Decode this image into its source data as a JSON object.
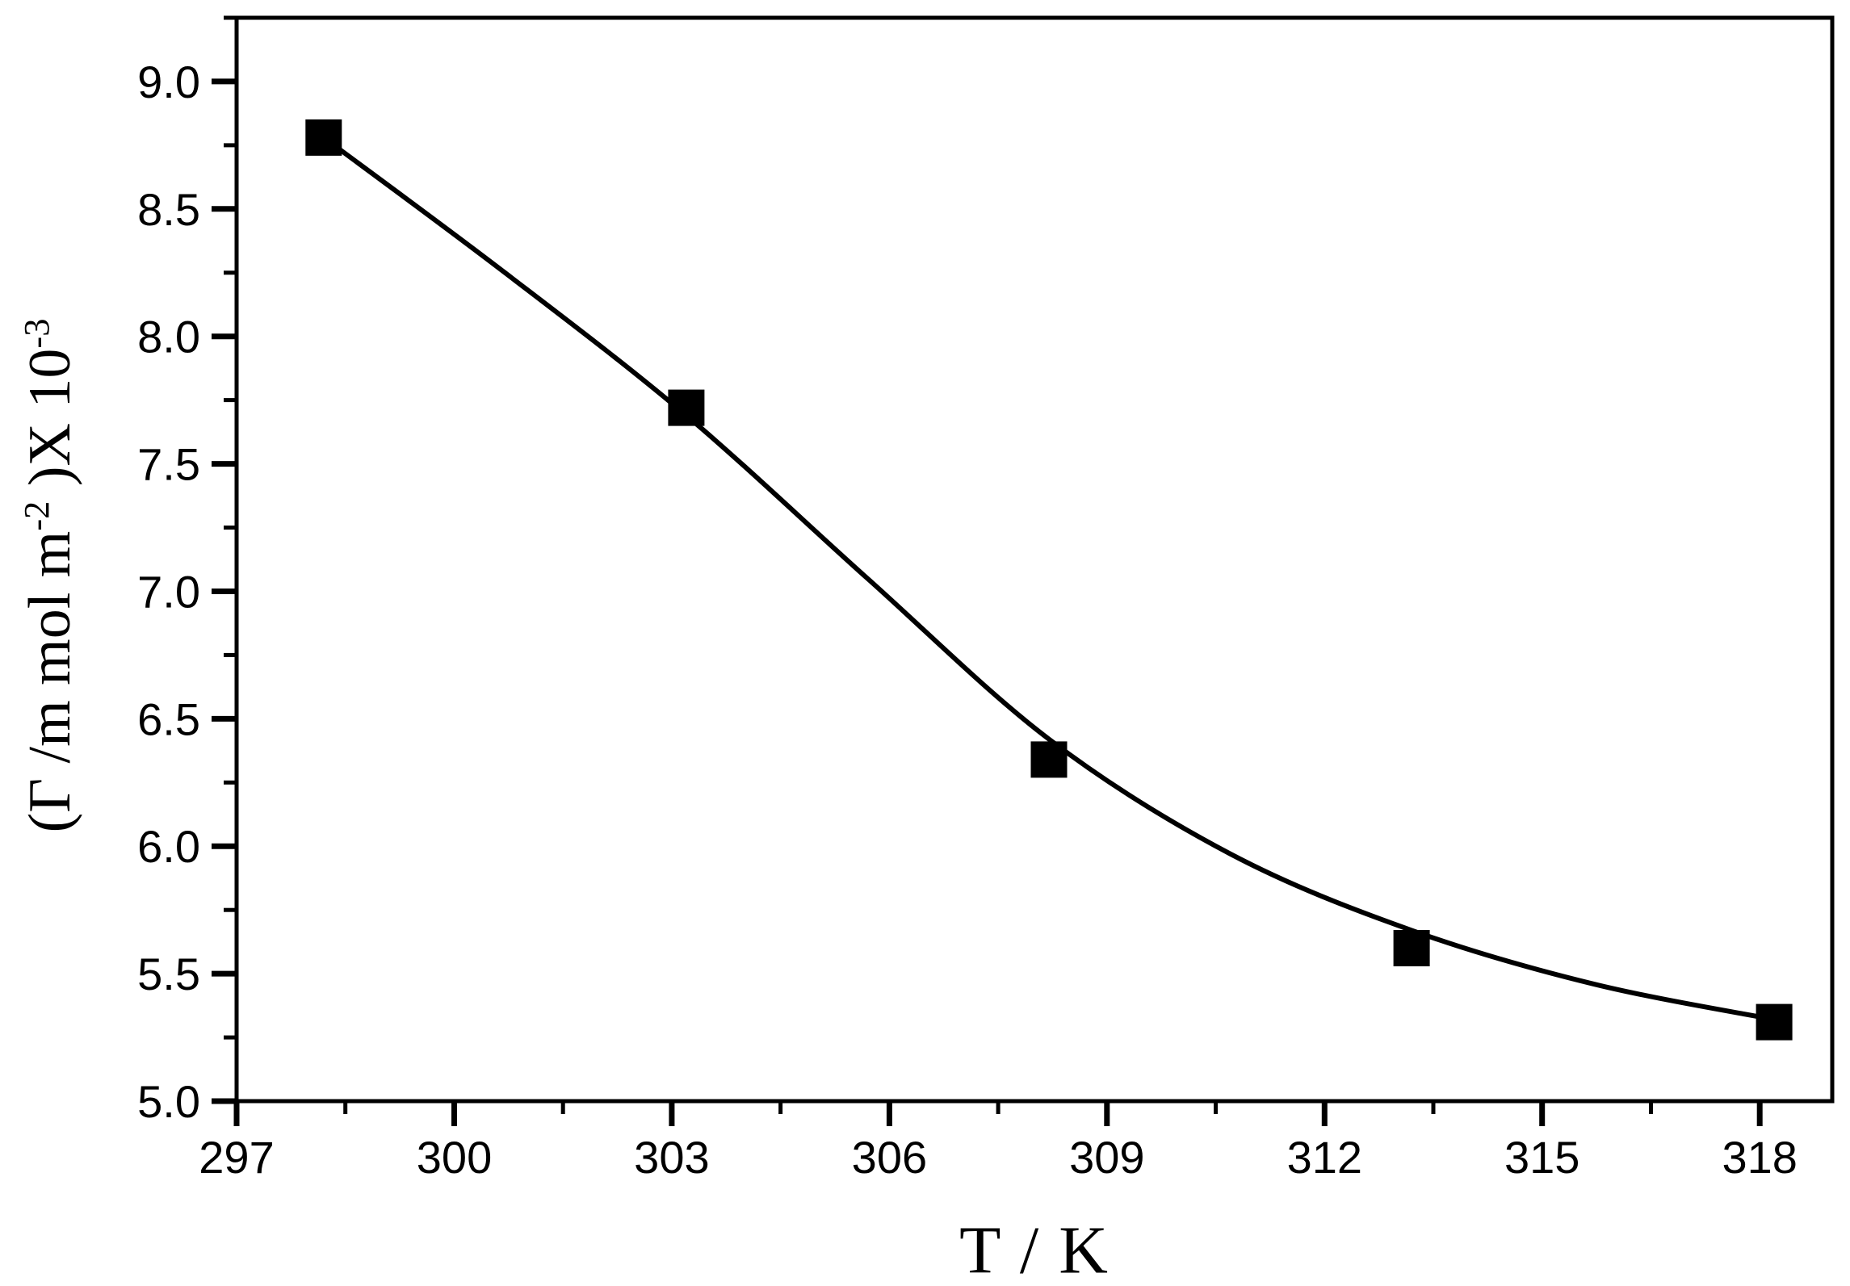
{
  "chart_data": {
    "type": "scatter",
    "title": "",
    "xlabel": "T / K",
    "ylabel": "(Γ /m mol m⁻²)X 10⁻³",
    "ylabel_parts": [
      {
        "text": "(Γ /m mol m",
        "sup": false
      },
      {
        "text": "-2",
        "sup": true
      },
      {
        "text": " )X 10",
        "sup": false
      },
      {
        "text": "-3",
        "sup": true
      }
    ],
    "marker": "filled-square",
    "points": [
      {
        "x": 298.2,
        "y": 8.78
      },
      {
        "x": 303.2,
        "y": 7.72
      },
      {
        "x": 308.2,
        "y": 6.34
      },
      {
        "x": 313.2,
        "y": 5.6
      },
      {
        "x": 318.2,
        "y": 5.31
      }
    ],
    "fit_curve": {
      "description": "smooth sigmoidal fit line through the data",
      "points": [
        {
          "x": 298.2,
          "y": 8.78
        },
        {
          "x": 300.7,
          "y": 8.25
        },
        {
          "x": 303.2,
          "y": 7.69
        },
        {
          "x": 305.7,
          "y": 7.05
        },
        {
          "x": 308.2,
          "y": 6.42
        },
        {
          "x": 310.7,
          "y": 5.97
        },
        {
          "x": 313.2,
          "y": 5.67
        },
        {
          "x": 315.7,
          "y": 5.46
        },
        {
          "x": 318.2,
          "y": 5.32
        }
      ]
    },
    "x_axis": {
      "range": [
        297,
        319
      ],
      "minor_step": 1.5,
      "ticks": [
        {
          "value": 297,
          "label": "297"
        },
        {
          "value": 300,
          "label": "300"
        },
        {
          "value": 303,
          "label": "303"
        },
        {
          "value": 306,
          "label": "306"
        },
        {
          "value": 309,
          "label": "309"
        },
        {
          "value": 312,
          "label": "312"
        },
        {
          "value": 315,
          "label": "315"
        },
        {
          "value": 318,
          "label": "318"
        }
      ]
    },
    "y_axis": {
      "range": [
        5.0,
        9.25
      ],
      "minor_step": 0.25,
      "ticks": [
        {
          "value": 5.0,
          "label": "5.0"
        },
        {
          "value": 5.5,
          "label": "5.5"
        },
        {
          "value": 6.0,
          "label": "6.0"
        },
        {
          "value": 6.5,
          "label": "6.5"
        },
        {
          "value": 7.0,
          "label": "7.0"
        },
        {
          "value": 7.5,
          "label": "7.5"
        },
        {
          "value": 8.0,
          "label": "8.0"
        },
        {
          "value": 8.5,
          "label": "8.5"
        },
        {
          "value": 9.0,
          "label": "9.0"
        }
      ]
    },
    "grid": false,
    "legend": false,
    "colors": {
      "foreground": "#000000",
      "background": "#ffffff"
    }
  }
}
